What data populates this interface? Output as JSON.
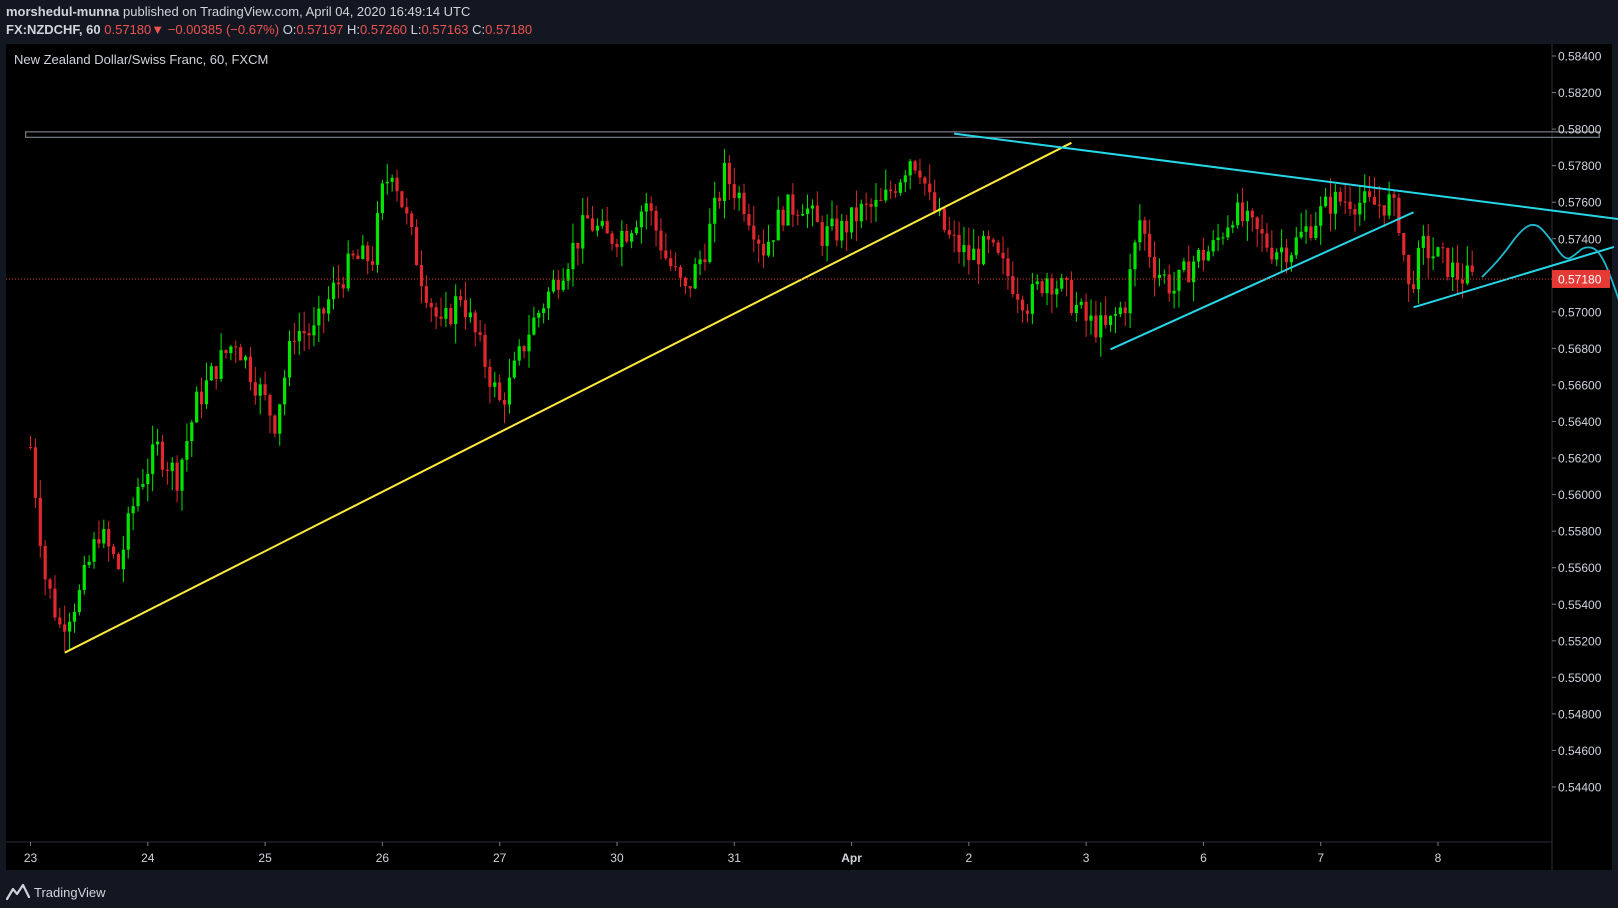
{
  "header": {
    "author": "morshedul-munna",
    "published_text": " published on TradingView.com, April 04, 2020 16:49:14 UTC",
    "symbol": "FX:NZDCHF, 60",
    "last": "0.57180",
    "change_arrow": "▼",
    "change": "−0.00385 (−0.67%)",
    "open_label": "O:",
    "open": "0.57197",
    "high_label": "H:",
    "high": "0.57260",
    "low_label": "L:",
    "low": "0.57163",
    "close_label": "C:",
    "close": "0.57180"
  },
  "footer": {
    "brand": "TradingView",
    "logo_icon": "tradingview-logo-icon"
  },
  "colors": {
    "background": "#000000",
    "panel": "#131722",
    "up": "#00e600",
    "down": "#e0282e",
    "trendline_yellow": "#ffeb3b",
    "trendline_cyan": "#26d7e8",
    "projection": "#1fb8cc",
    "price_marker": "#e53935",
    "resistance_box": "#787b86"
  },
  "chart_data": {
    "type": "candlestick",
    "title": "New Zealand Dollar/Swiss Franc, 60, FXCM",
    "current_price": 0.5718,
    "current_price_label": "0.57180",
    "y_axis": {
      "range": [
        0.5425,
        0.5853
      ],
      "ticks": [
        "0.58400",
        "0.58200",
        "0.58000",
        "0.57800",
        "0.57600",
        "0.57400",
        "0.57200",
        "0.57000",
        "0.56800",
        "0.56600",
        "0.56400",
        "0.56200",
        "0.56000",
        "0.55800",
        "0.55600",
        "0.55400",
        "0.55200",
        "0.55000",
        "0.54800",
        "0.54600",
        "0.54400"
      ]
    },
    "x_axis": {
      "labels": [
        {
          "label": "23",
          "bold": false
        },
        {
          "label": "24",
          "bold": false
        },
        {
          "label": "25",
          "bold": false
        },
        {
          "label": "26",
          "bold": false
        },
        {
          "label": "27",
          "bold": false
        },
        {
          "label": "30",
          "bold": false
        },
        {
          "label": "31",
          "bold": false
        },
        {
          "label": "Apr",
          "bold": true
        },
        {
          "label": "2",
          "bold": false
        },
        {
          "label": "3",
          "bold": false
        },
        {
          "label": "6",
          "bold": false
        },
        {
          "label": "7",
          "bold": false
        },
        {
          "label": "8",
          "bold": false
        }
      ]
    },
    "price_path": [
      {
        "i": 0,
        "p": 0.5626
      },
      {
        "i": 3,
        "p": 0.5555
      },
      {
        "i": 6,
        "p": 0.5528
      },
      {
        "i": 10,
        "p": 0.5545
      },
      {
        "i": 14,
        "p": 0.558
      },
      {
        "i": 18,
        "p": 0.556
      },
      {
        "i": 22,
        "p": 0.5605
      },
      {
        "i": 26,
        "p": 0.5625
      },
      {
        "i": 30,
        "p": 0.561
      },
      {
        "i": 34,
        "p": 0.565
      },
      {
        "i": 38,
        "p": 0.567
      },
      {
        "i": 42,
        "p": 0.5685
      },
      {
        "i": 46,
        "p": 0.5662
      },
      {
        "i": 50,
        "p": 0.564
      },
      {
        "i": 54,
        "p": 0.569
      },
      {
        "i": 58,
        "p": 0.5688
      },
      {
        "i": 62,
        "p": 0.5712
      },
      {
        "i": 66,
        "p": 0.5728
      },
      {
        "i": 70,
        "p": 0.573
      },
      {
        "i": 72,
        "p": 0.5765
      },
      {
        "i": 74,
        "p": 0.578
      },
      {
        "i": 76,
        "p": 0.576
      },
      {
        "i": 80,
        "p": 0.572
      },
      {
        "i": 84,
        "p": 0.569
      },
      {
        "i": 88,
        "p": 0.571
      },
      {
        "i": 92,
        "p": 0.568
      },
      {
        "i": 96,
        "p": 0.565
      },
      {
        "i": 98,
        "p": 0.566
      },
      {
        "i": 102,
        "p": 0.569
      },
      {
        "i": 106,
        "p": 0.571
      },
      {
        "i": 110,
        "p": 0.573
      },
      {
        "i": 114,
        "p": 0.575
      },
      {
        "i": 118,
        "p": 0.574
      },
      {
        "i": 122,
        "p": 0.5745
      },
      {
        "i": 126,
        "p": 0.576
      },
      {
        "i": 130,
        "p": 0.573
      },
      {
        "i": 134,
        "p": 0.571
      },
      {
        "i": 138,
        "p": 0.5735
      },
      {
        "i": 142,
        "p": 0.5775
      },
      {
        "i": 146,
        "p": 0.576
      },
      {
        "i": 150,
        "p": 0.5735
      },
      {
        "i": 154,
        "p": 0.5755
      },
      {
        "i": 158,
        "p": 0.576
      },
      {
        "i": 162,
        "p": 0.5742
      },
      {
        "i": 166,
        "p": 0.5745
      },
      {
        "i": 170,
        "p": 0.5755
      },
      {
        "i": 174,
        "p": 0.5758
      },
      {
        "i": 178,
        "p": 0.5775
      },
      {
        "i": 180,
        "p": 0.5785
      },
      {
        "i": 182,
        "p": 0.578
      },
      {
        "i": 184,
        "p": 0.576
      },
      {
        "i": 188,
        "p": 0.574
      },
      {
        "i": 192,
        "p": 0.573
      },
      {
        "i": 196,
        "p": 0.5735
      },
      {
        "i": 200,
        "p": 0.572
      },
      {
        "i": 204,
        "p": 0.5705
      },
      {
        "i": 208,
        "p": 0.572
      },
      {
        "i": 212,
        "p": 0.571
      },
      {
        "i": 216,
        "p": 0.5695
      },
      {
        "i": 220,
        "p": 0.569
      },
      {
        "i": 224,
        "p": 0.5705
      },
      {
        "i": 227,
        "p": 0.575
      },
      {
        "i": 230,
        "p": 0.5725
      },
      {
        "i": 234,
        "p": 0.5712
      },
      {
        "i": 238,
        "p": 0.5728
      },
      {
        "i": 242,
        "p": 0.5735
      },
      {
        "i": 246,
        "p": 0.5755
      },
      {
        "i": 250,
        "p": 0.5745
      },
      {
        "i": 254,
        "p": 0.5735
      },
      {
        "i": 258,
        "p": 0.5735
      },
      {
        "i": 262,
        "p": 0.5748
      },
      {
        "i": 266,
        "p": 0.576
      },
      {
        "i": 270,
        "p": 0.5762
      },
      {
        "i": 274,
        "p": 0.5758
      },
      {
        "i": 278,
        "p": 0.576
      },
      {
        "i": 280,
        "p": 0.575
      },
      {
        "i": 282,
        "p": 0.5712
      },
      {
        "i": 285,
        "p": 0.5735
      },
      {
        "i": 289,
        "p": 0.5728
      },
      {
        "i": 292,
        "p": 0.572
      },
      {
        "i": 295,
        "p": 0.5718
      }
    ],
    "resistance_zone": {
      "start_i": -1,
      "end_i": 321,
      "low": 0.57955,
      "high": 0.57985
    },
    "trendlines": [
      {
        "color": "yellow",
        "p1": {
          "i": 7,
          "p": 0.55135
        },
        "p2": {
          "i": 213,
          "p": 0.57925
        }
      },
      {
        "color": "cyan",
        "p1": {
          "i": 189,
          "p": 0.57975
        },
        "p2": {
          "i": 381,
          "p": 0.57315
        }
      },
      {
        "color": "cyan",
        "p1": {
          "i": 221,
          "p": 0.56795
        },
        "p2": {
          "i": 283,
          "p": 0.57545
        }
      },
      {
        "color": "cyan",
        "p1": {
          "i": 283,
          "p": 0.57025
        },
        "p2": {
          "i": 324,
          "p": 0.57355
        }
      }
    ],
    "projection_path": [
      {
        "i": 297,
        "p": 0.5719
      },
      {
        "i": 301,
        "p": 0.573
      },
      {
        "i": 305,
        "p": 0.5745
      },
      {
        "i": 308,
        "p": 0.5749
      },
      {
        "i": 311,
        "p": 0.574
      },
      {
        "i": 314,
        "p": 0.5728
      },
      {
        "i": 316,
        "p": 0.5731
      },
      {
        "i": 318,
        "p": 0.5736
      },
      {
        "i": 321,
        "p": 0.5734
      },
      {
        "i": 324,
        "p": 0.5715
      },
      {
        "i": 327,
        "p": 0.569
      },
      {
        "i": 330,
        "p": 0.5665
      },
      {
        "i": 333,
        "p": 0.564
      },
      {
        "i": 336,
        "p": 0.5605
      },
      {
        "i": 339,
        "p": 0.558
      },
      {
        "i": 342,
        "p": 0.5556
      }
    ]
  }
}
